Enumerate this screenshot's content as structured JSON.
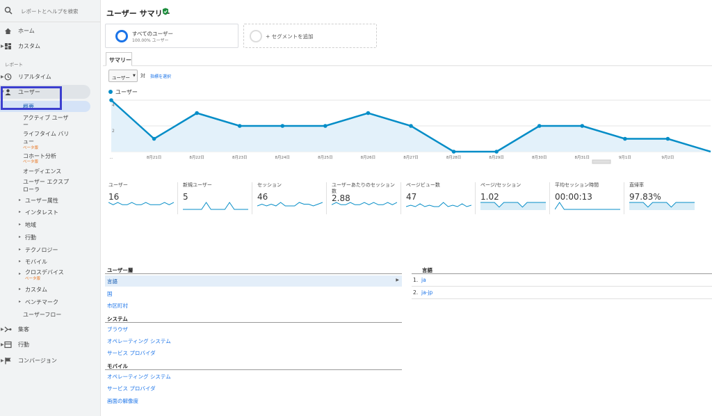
{
  "search": {
    "placeholder": "レポートとヘルプを検索"
  },
  "sidebar": {
    "home": "ホーム",
    "custom": "カスタム",
    "reports_label": "レポート",
    "realtime": "リアルタイム",
    "users": "ユーザー",
    "audience_items": [
      {
        "label": "概要"
      },
      {
        "label": "アクティブ ユーザ"
      },
      {
        "label": "ー"
      },
      {
        "label": "ライフタイム バリ"
      },
      {
        "label": "ュー"
      },
      {
        "label": "コホート分析"
      },
      {
        "label": "オーディエンス"
      },
      {
        "label": "ユーザー エクスプ"
      },
      {
        "label": "ローラ"
      },
      {
        "label": "ユーザー属性"
      },
      {
        "label": "インタレスト"
      },
      {
        "label": "地域"
      },
      {
        "label": "行動"
      },
      {
        "label": "テクノロジー"
      },
      {
        "label": "モバイル"
      },
      {
        "label": "クロスデバイス"
      },
      {
        "label": "カスタム"
      },
      {
        "label": "ベンチマーク"
      },
      {
        "label": "ユーザーフロー"
      }
    ],
    "beta_label": "ベータ版",
    "acquisition": "集客",
    "behavior": "行動",
    "conversion": "コンバージョン"
  },
  "header": {
    "title": "ユーザー サマリー"
  },
  "segments": {
    "all_users": "すべてのユーザー",
    "all_users_sub": "100.00% ユーザー",
    "add_segment": "+ セグメントを追加"
  },
  "tabs": {
    "summary": "サマリー"
  },
  "chart_controls": {
    "metric": "ユーザー",
    "vs": "対",
    "choose_metric": "指標を選択"
  },
  "chart_data": {
    "type": "line",
    "series": [
      {
        "name": "ユーザー",
        "values": [
          4,
          1,
          3,
          2,
          2,
          2,
          3,
          2,
          0,
          0,
          2,
          2,
          1,
          1,
          0
        ]
      }
    ],
    "x": [
      "...",
      "8月21日",
      "8月22日",
      "8月23日",
      "8月24日",
      "8月25日",
      "8月26日",
      "8月27日",
      "8月28日",
      "8月29日",
      "8月30日",
      "8月31日",
      "9月1日",
      "9月2日",
      ""
    ],
    "x_tick_labels": [
      "...",
      "8月21日",
      "8月22日",
      "8月23日",
      "8月24日",
      "8月25日",
      "8月26日",
      "8月27日",
      "8月28日",
      "8月29日",
      "8月30日",
      "8月31日",
      "9月1日",
      "9月2日"
    ],
    "y_ticks": [
      "4",
      "2"
    ],
    "ylim": [
      0,
      4
    ],
    "grid": true,
    "color": "#058dc7"
  },
  "scorecards": [
    {
      "label": "ユーザー",
      "value": "16",
      "spark": [
        3,
        2,
        3,
        2,
        2,
        3,
        2,
        2,
        3,
        2,
        2,
        2,
        3,
        2,
        3
      ]
    },
    {
      "label": "新規ユーザー",
      "value": "5",
      "spark": [
        0,
        0,
        0,
        0,
        0,
        2,
        0,
        0,
        0,
        0,
        2,
        0,
        0,
        0,
        0
      ]
    },
    {
      "label": "セッション",
      "value": "46",
      "spark": [
        2,
        3,
        2,
        3,
        2,
        4,
        2,
        2,
        2,
        4,
        3,
        3,
        2,
        3,
        4
      ]
    },
    {
      "label": "ユーザーあたりのセッション数",
      "value": "2.88",
      "spark": [
        2,
        3,
        2,
        2,
        3,
        2,
        2,
        3,
        2,
        3,
        2,
        2,
        3,
        2,
        3
      ]
    },
    {
      "label": "ページビュー数",
      "value": "47",
      "spark": [
        2,
        3,
        2,
        4,
        2,
        3,
        2,
        2,
        5,
        2,
        3,
        2,
        4,
        2,
        3
      ]
    },
    {
      "label": "ページ/セッション",
      "value": "1.02",
      "spark": [
        3,
        3,
        3,
        3,
        1,
        3,
        3,
        3,
        3,
        1,
        3,
        3,
        3,
        3,
        3
      ]
    },
    {
      "label": "平均セッション時間",
      "value": "00:00:13",
      "spark": [
        0,
        3,
        0,
        0,
        0,
        0,
        0,
        0,
        0,
        0,
        0,
        0,
        0,
        0,
        0
      ]
    },
    {
      "label": "直帰率",
      "value": "97.83%",
      "spark": [
        3,
        3,
        3,
        3,
        1,
        3,
        3,
        3,
        3,
        1,
        3,
        3,
        3,
        3,
        3
      ]
    }
  ],
  "dimensions": {
    "user_type_header": "ユーザー層",
    "user_type_items": [
      "言語",
      "国",
      "市区町村"
    ],
    "system_header": "システム",
    "system_items": [
      "ブラウザ",
      "オペレーティング システム",
      "サービス プロバイダ"
    ],
    "mobile_header": "モバイル",
    "mobile_items": [
      "オペレーティング システム",
      "サービス プロバイダ",
      "画面の解像度"
    ]
  },
  "language_table": {
    "header": "言語",
    "rows": [
      {
        "num": "1.",
        "value": "ja"
      },
      {
        "num": "2.",
        "value": "ja-jp"
      }
    ]
  }
}
